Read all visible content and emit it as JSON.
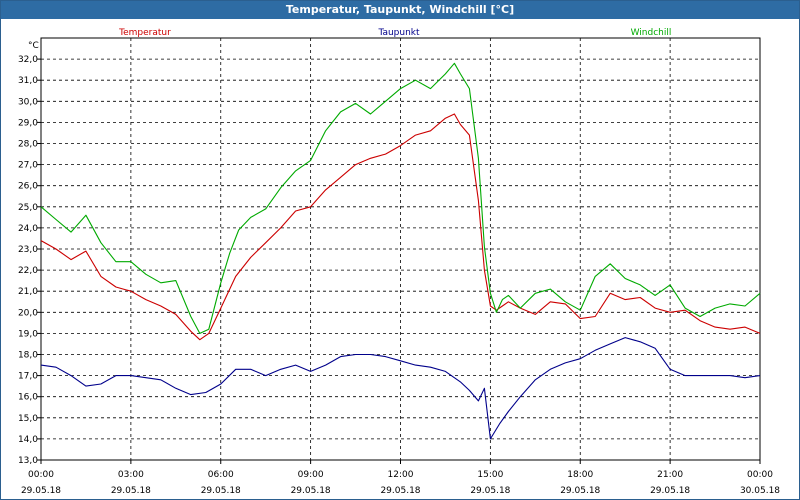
{
  "window": {
    "title": "Temperatur, Taupunkt, Windchill [°C]"
  },
  "chart_data": {
    "type": "line",
    "title": "Temperatur, Taupunkt, Windchill [°C]",
    "ylabel": "°C",
    "ylim": [
      13,
      33
    ],
    "yticks": [
      13,
      14,
      15,
      16,
      17,
      18,
      19,
      20,
      21,
      22,
      23,
      24,
      25,
      26,
      27,
      28,
      29,
      30,
      31,
      32
    ],
    "ytick_labels": [
      "13,0",
      "14,0",
      "15,0",
      "16,0",
      "17,0",
      "18,0",
      "19,0",
      "20,0",
      "21,0",
      "22,0",
      "23,0",
      "24,0",
      "25,0",
      "26,0",
      "27,0",
      "28,0",
      "29,0",
      "30,0",
      "31,0",
      "32,0"
    ],
    "xlim": [
      0,
      24
    ],
    "xticks": [
      0,
      3,
      6,
      9,
      12,
      15,
      18,
      21,
      24
    ],
    "xtick_times": [
      "00:00",
      "03:00",
      "06:00",
      "09:00",
      "12:00",
      "15:00",
      "18:00",
      "21:00",
      "00:00"
    ],
    "xtick_dates": [
      "29.05.18",
      "29.05.18",
      "29.05.18",
      "29.05.18",
      "29.05.18",
      "29.05.18",
      "29.05.18",
      "29.05.18",
      "30.05.18"
    ],
    "grid": true,
    "legend_placement": "top",
    "series": [
      {
        "name": "Temperatur",
        "color": "#cc0000",
        "x": [
          0,
          0.5,
          1,
          1.5,
          2,
          2.5,
          3,
          3.5,
          4,
          4.5,
          5,
          5.3,
          5.6,
          6,
          6.5,
          7,
          7.5,
          8,
          8.5,
          9,
          9.5,
          10,
          10.5,
          11,
          11.5,
          12,
          12.5,
          13,
          13.5,
          13.8,
          14,
          14.3,
          14.6,
          14.8,
          15,
          15.2,
          15.4,
          15.6,
          16,
          16.5,
          17,
          17.5,
          18,
          18.5,
          19,
          19.5,
          20,
          20.5,
          21,
          21.5,
          22,
          22.5,
          23,
          23.5,
          24
        ],
        "values": [
          23.4,
          23.0,
          22.5,
          22.9,
          21.7,
          21.2,
          21.0,
          20.6,
          20.3,
          19.9,
          19.1,
          18.7,
          19.0,
          20.2,
          21.7,
          22.6,
          23.3,
          24.0,
          24.8,
          25.0,
          25.8,
          26.4,
          27.0,
          27.3,
          27.5,
          27.9,
          28.4,
          28.6,
          29.2,
          29.4,
          28.9,
          28.4,
          25.3,
          22.0,
          20.3,
          20.1,
          20.3,
          20.5,
          20.2,
          19.9,
          20.5,
          20.4,
          19.7,
          19.8,
          20.9,
          20.6,
          20.7,
          20.2,
          20.0,
          20.1,
          19.6,
          19.3,
          19.2,
          19.3,
          19.0
        ]
      },
      {
        "name": "Taupunkt",
        "color": "#00008b",
        "x": [
          0,
          0.5,
          1,
          1.5,
          2,
          2.5,
          3,
          3.5,
          4,
          4.5,
          5,
          5.5,
          6,
          6.5,
          7,
          7.5,
          8,
          8.5,
          9,
          9.5,
          10,
          10.5,
          11,
          11.5,
          12,
          12.5,
          13,
          13.5,
          14,
          14.3,
          14.6,
          14.8,
          15,
          15.3,
          15.6,
          16,
          16.5,
          17,
          17.5,
          18,
          18.5,
          19,
          19.5,
          20,
          20.5,
          21,
          21.5,
          22,
          22.5,
          23,
          23.5,
          24
        ],
        "values": [
          17.5,
          17.4,
          17.0,
          16.5,
          16.6,
          17.0,
          17.0,
          16.9,
          16.8,
          16.4,
          16.1,
          16.2,
          16.6,
          17.3,
          17.3,
          17.0,
          17.3,
          17.5,
          17.2,
          17.5,
          17.9,
          18.0,
          18.0,
          17.9,
          17.7,
          17.5,
          17.4,
          17.2,
          16.7,
          16.3,
          15.8,
          16.4,
          14.0,
          14.7,
          15.3,
          16.0,
          16.8,
          17.3,
          17.6,
          17.8,
          18.2,
          18.5,
          18.8,
          18.6,
          18.3,
          17.3,
          17.0,
          17.0,
          17.0,
          17.0,
          16.9,
          17.0
        ]
      },
      {
        "name": "Windchill",
        "color": "#00aa00",
        "x": [
          0,
          0.5,
          1,
          1.5,
          2,
          2.5,
          3,
          3.5,
          4,
          4.5,
          5,
          5.3,
          5.6,
          6,
          6.3,
          6.6,
          7,
          7.5,
          8,
          8.5,
          9,
          9.5,
          10,
          10.5,
          11,
          11.5,
          12,
          12.5,
          13,
          13.5,
          13.8,
          14,
          14.3,
          14.6,
          14.8,
          15,
          15.2,
          15.4,
          15.6,
          16,
          16.5,
          17,
          17.5,
          18,
          18.5,
          19,
          19.5,
          20,
          20.5,
          21,
          21.5,
          22,
          22.5,
          23,
          23.5,
          24
        ],
        "values": [
          25.0,
          24.4,
          23.8,
          24.6,
          23.3,
          22.4,
          22.4,
          21.8,
          21.4,
          21.5,
          19.8,
          19.0,
          19.2,
          21.4,
          22.8,
          23.9,
          24.5,
          24.9,
          25.9,
          26.7,
          27.2,
          28.6,
          29.5,
          29.9,
          29.4,
          30.0,
          30.6,
          31.0,
          30.6,
          31.3,
          31.8,
          31.3,
          30.6,
          27.3,
          23.1,
          20.9,
          20.0,
          20.6,
          20.8,
          20.2,
          20.9,
          21.1,
          20.5,
          20.1,
          21.7,
          22.3,
          21.6,
          21.3,
          20.8,
          21.3,
          20.2,
          19.8,
          20.2,
          20.4,
          20.3,
          20.9
        ]
      }
    ]
  }
}
